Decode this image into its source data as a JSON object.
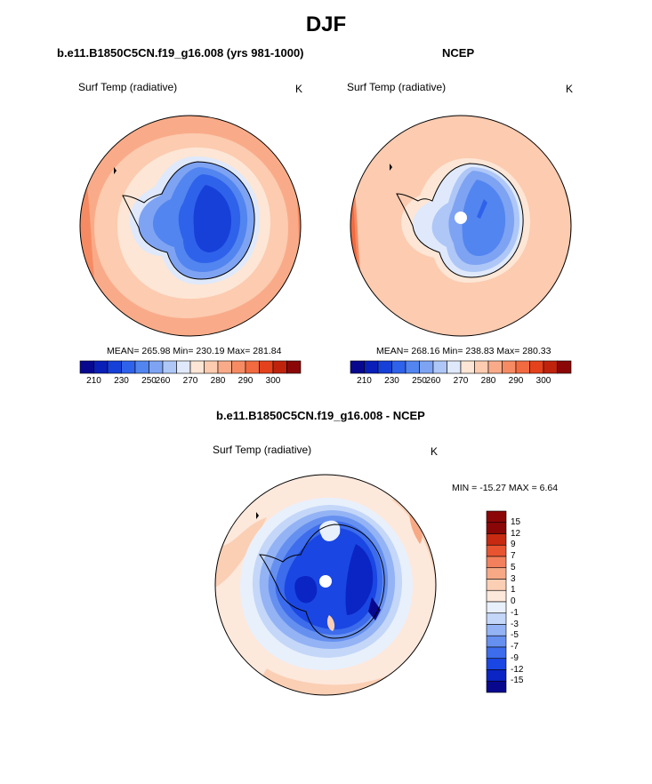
{
  "title": "DJF",
  "palette_abs": [
    "#08088f",
    "#0a1fb8",
    "#1740d9",
    "#2f62ea",
    "#5285ef",
    "#7ea3f3",
    "#aec7f7",
    "#dfe9fb",
    "#fde6d5",
    "#fccbb0",
    "#f9ab89",
    "#f68b63",
    "#f26a40",
    "#e4421c",
    "#c0230c",
    "#8b0707"
  ],
  "palette_diff": [
    "#08088f",
    "#0b25c4",
    "#1a47e3",
    "#3d6cec",
    "#6690f0",
    "#93b3f5",
    "#c4d7f9",
    "#e8f0fc",
    "#fde8dc",
    "#fbcfb4",
    "#f7a985",
    "#f3805c",
    "#e85430",
    "#c72a10",
    "#8b0707"
  ],
  "panels": [
    {
      "title": "b.e11.B1850C5CN.f19_g16.008 (yrs 981-1000)",
      "variable": "Surf Temp (radiative)",
      "units": "K",
      "stats": "MEAN= 265.98  Min= 230.19  Max= 281.84",
      "colorbar_labels": [
        "210",
        "230",
        "250",
        "260",
        "270",
        "280",
        "290",
        "300"
      ]
    },
    {
      "title": "NCEP",
      "variable": "Surf Temp (radiative)",
      "units": "K",
      "stats": "MEAN= 268.16  Min= 238.83  Max= 280.33",
      "colorbar_labels": [
        "210",
        "230",
        "250",
        "260",
        "270",
        "280",
        "290",
        "300"
      ]
    },
    {
      "title": "b.e11.B1850C5CN.f19_g16.008 - NCEP",
      "variable": "Surf Temp (radiative)",
      "units": "K",
      "stats": "MIN = -15.27 MAX =   6.64",
      "colorbar_labels": [
        "15",
        "12",
        "9",
        "7",
        "5",
        "3",
        "1",
        "0",
        "-1",
        "-3",
        "-5",
        "-7",
        "-9",
        "-12",
        "-15"
      ]
    }
  ]
}
